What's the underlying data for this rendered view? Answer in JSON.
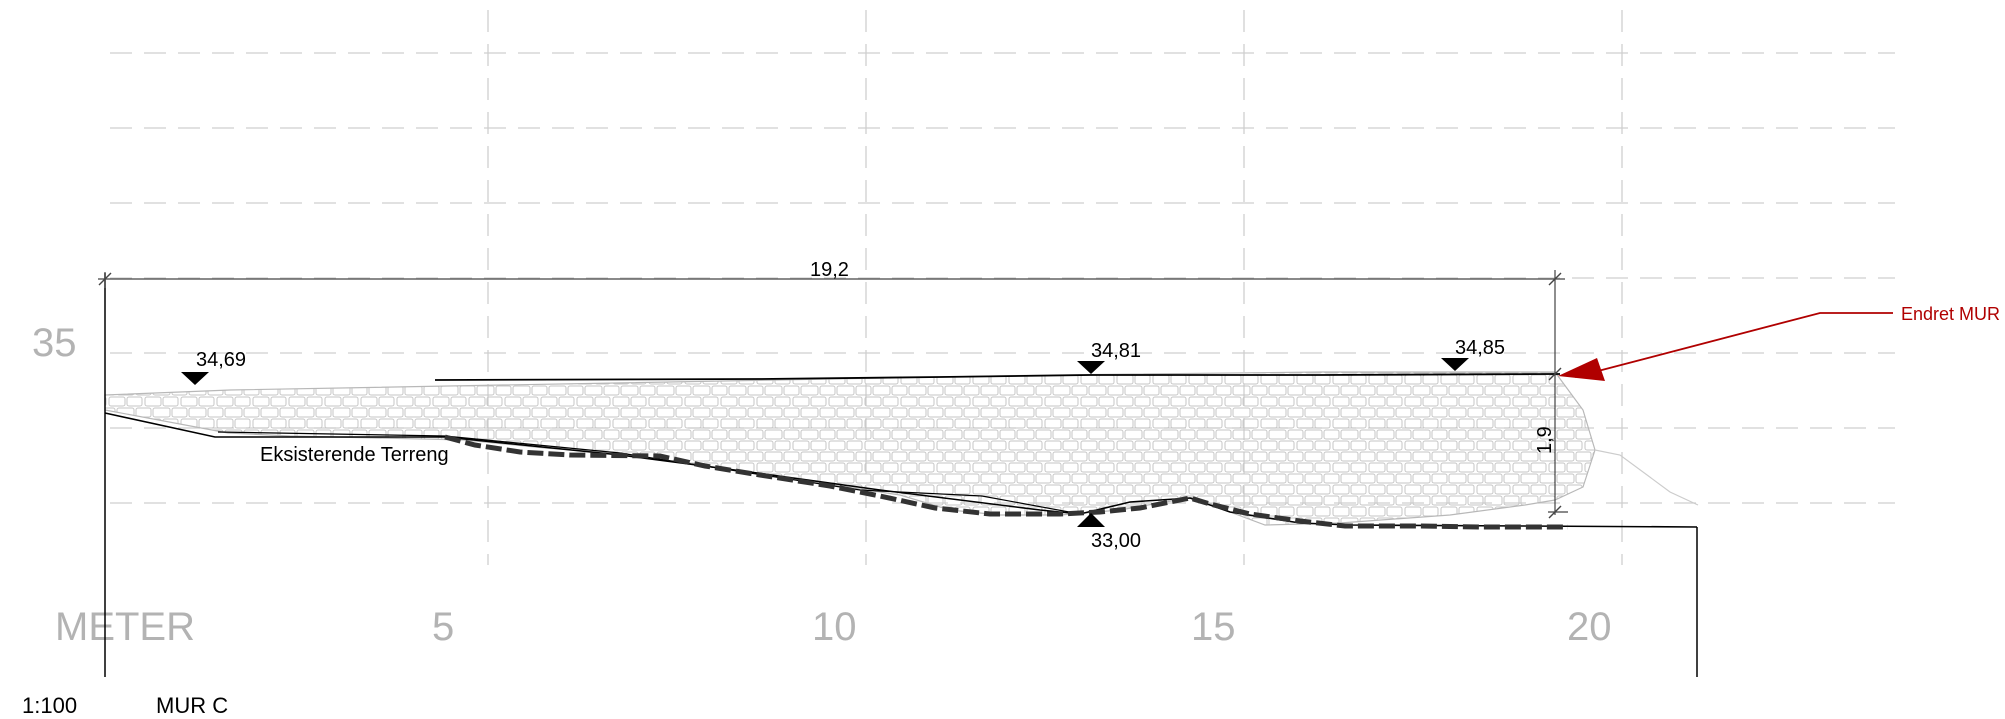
{
  "drawing": {
    "scale": "1:100",
    "title": "MUR C",
    "unit_label": "METER",
    "axis": {
      "x_ticks": [
        "5",
        "10",
        "15",
        "20"
      ],
      "y_tick": "35"
    },
    "dimensions": {
      "wall_length": "19,2",
      "wall_height": "1,9"
    },
    "elevations": {
      "left_top": "34,69",
      "mid_top": "34,81",
      "right_top": "34,85",
      "bottom": "33,00"
    },
    "terrain_label": "Eksisterende Terreng",
    "revision_note": "Endret MUR",
    "colors": {
      "grid": "#cfcfcf",
      "axis_text": "#b3b3b3",
      "revision": "#b00000",
      "wall_texture": "#c8c8c8"
    }
  }
}
